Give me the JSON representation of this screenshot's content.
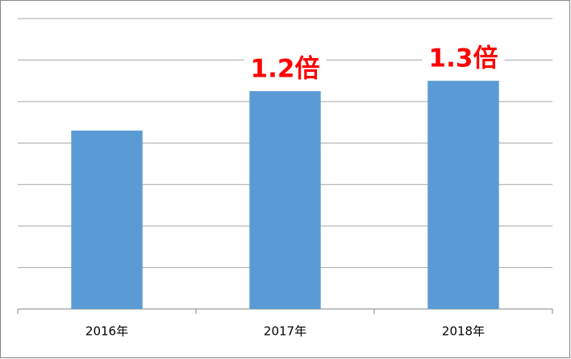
{
  "chart_data": {
    "type": "bar",
    "categories": [
      "2016年",
      "2017年",
      "2018年"
    ],
    "values": [
      4.3,
      5.25,
      5.5
    ],
    "color": "#5b9bd5",
    "ylim": [
      0,
      7
    ],
    "yticks": [
      0,
      1,
      2,
      3,
      4,
      5,
      6,
      7
    ],
    "grid": true,
    "annotations": [
      {
        "category": 1,
        "text": "1.2倍"
      },
      {
        "category": 2,
        "text": "1.3倍"
      }
    ]
  }
}
